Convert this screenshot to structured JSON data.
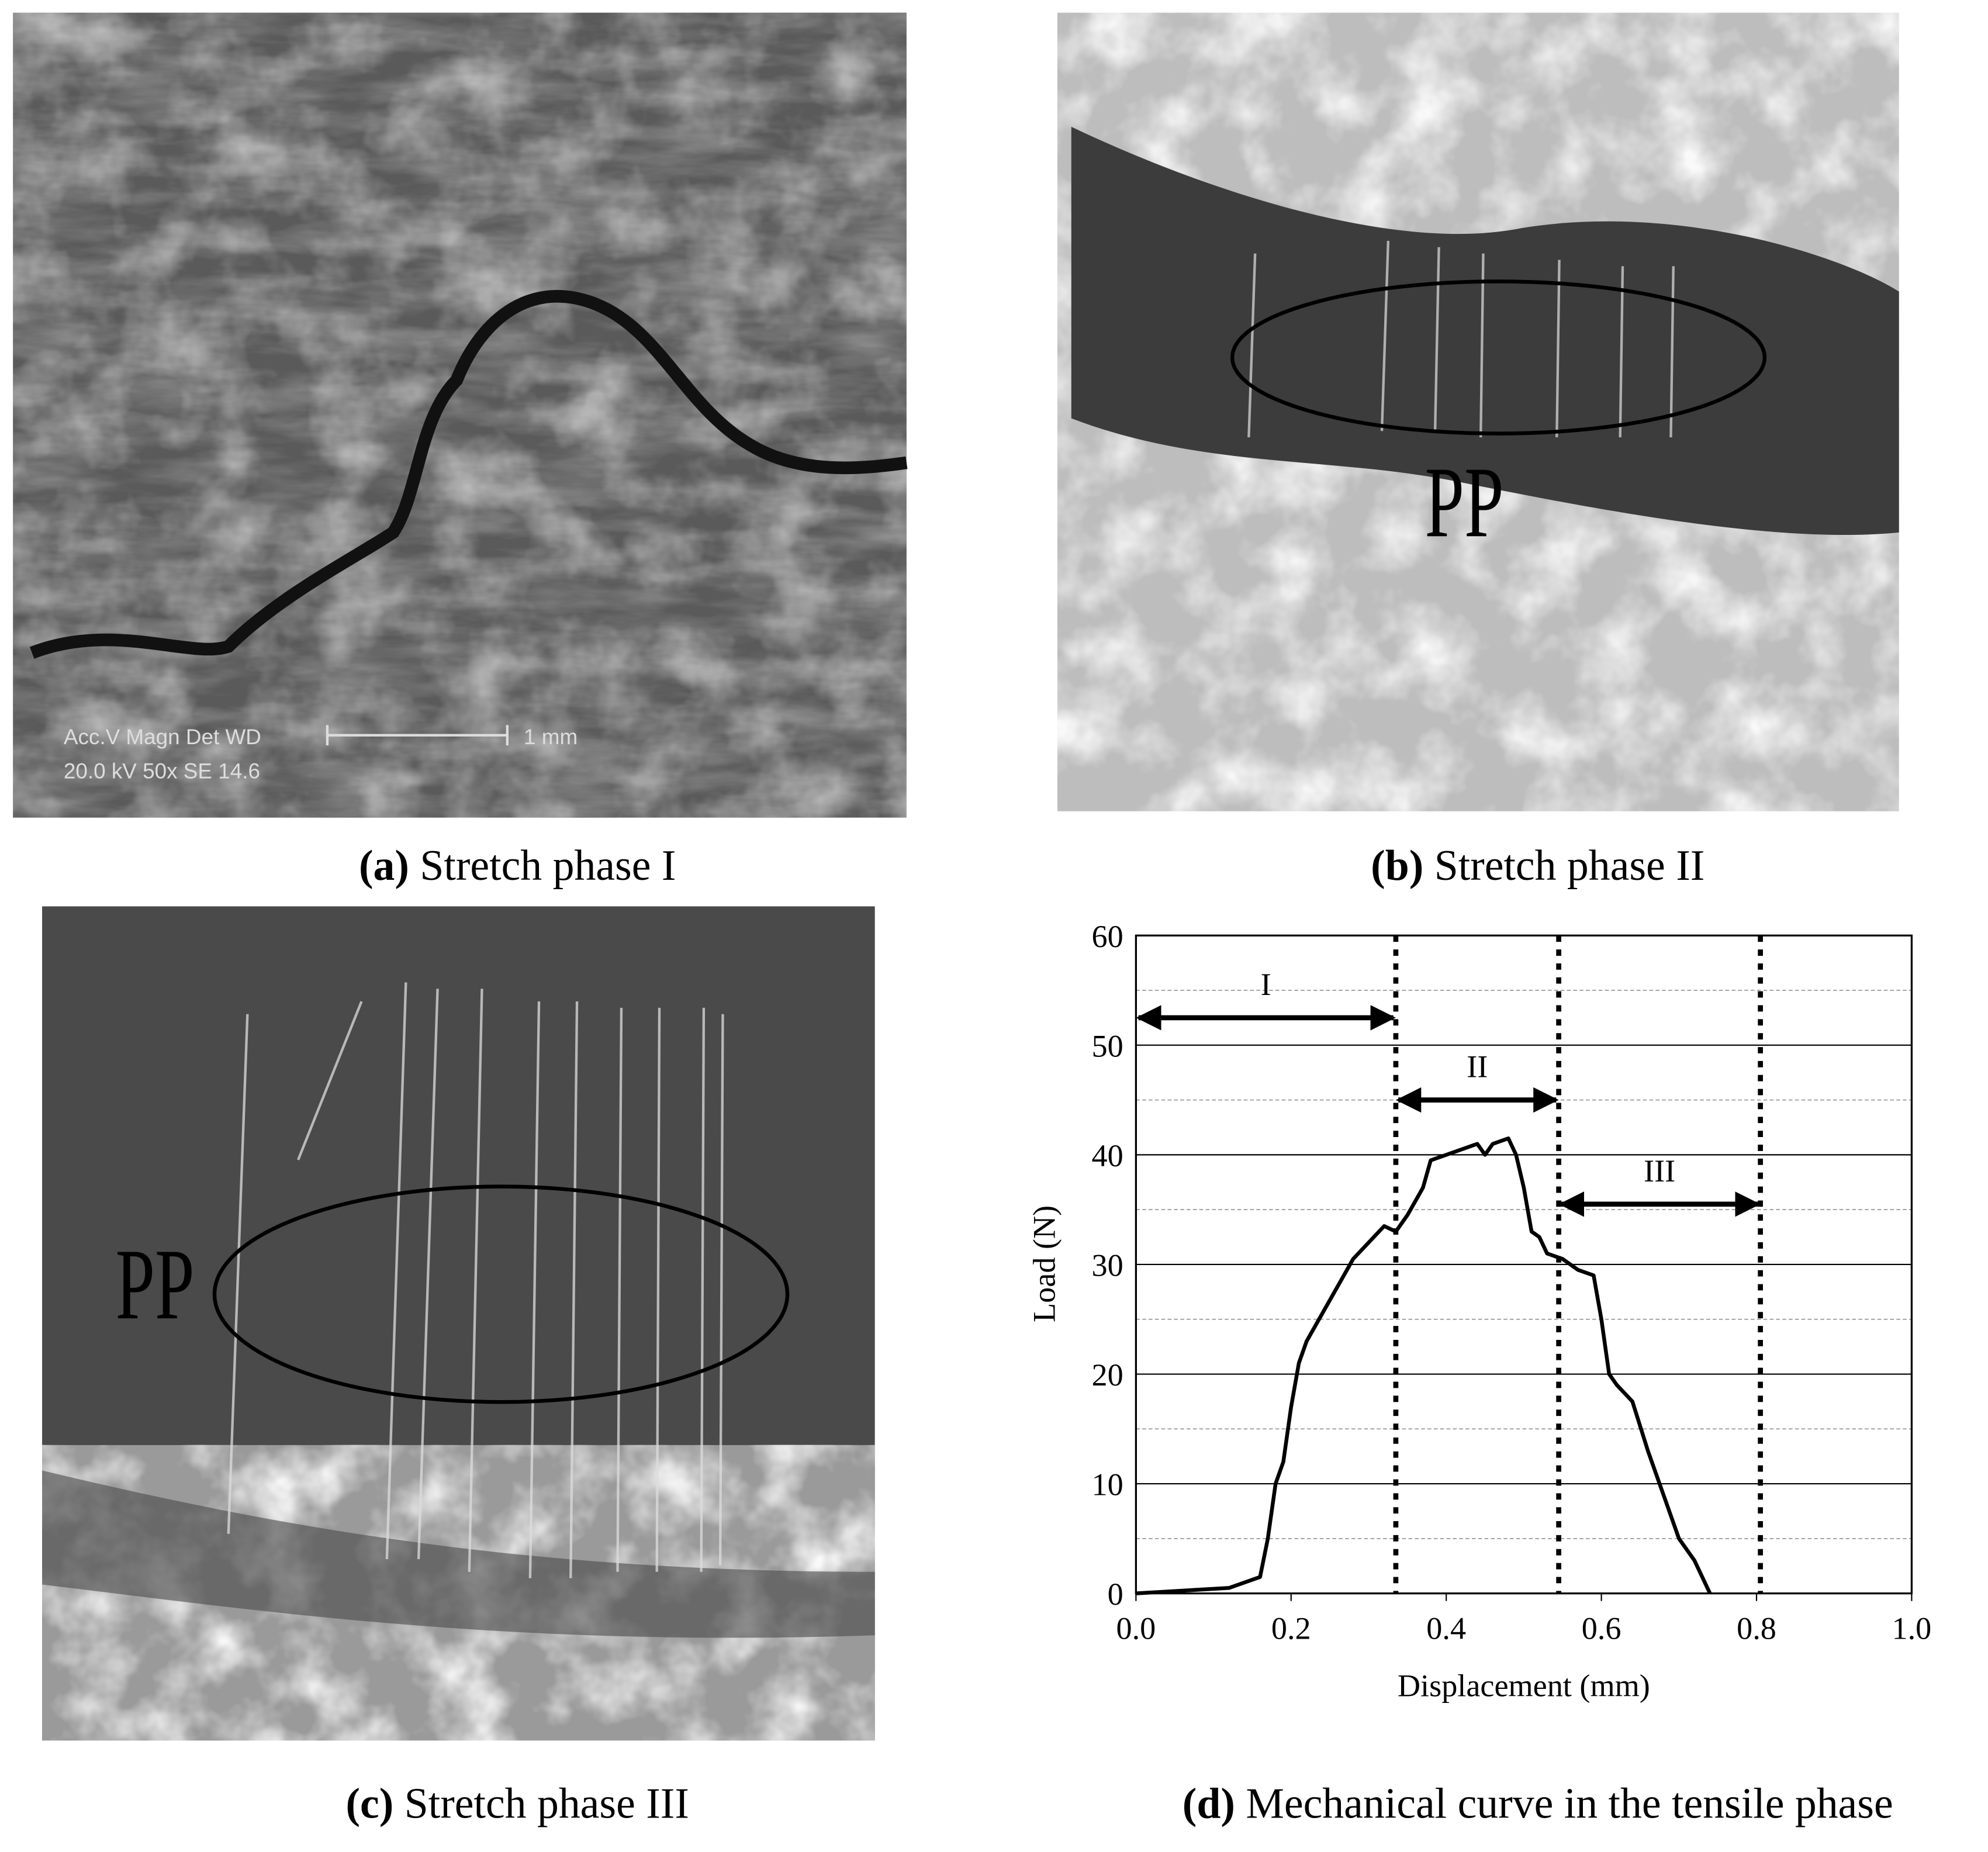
{
  "panels": [
    {
      "label": "(a)",
      "caption": "Stretch phase I",
      "scale_params": "Acc.V  Magn   Det  WD",
      "scale_values": "20.0 kV 50x     SE   14.6",
      "scale_bar": "1 mm"
    },
    {
      "label": "(b)",
      "caption": "Stretch phase II",
      "marker": "PP"
    },
    {
      "label": "(c)",
      "caption": "Stretch phase III",
      "marker": "PP"
    },
    {
      "label": "(d)",
      "caption": "Mechanical curve in the tensile phase"
    }
  ],
  "chart_data": {
    "type": "line",
    "x_label": "Displacement (mm)",
    "y_label": "Load (N)",
    "x": [
      0,
      0.12,
      0.16,
      0.17,
      0.18,
      0.19,
      0.2,
      0.21,
      0.22,
      0.24,
      0.26,
      0.28,
      0.3,
      0.32,
      0.335,
      0.35,
      0.37,
      0.38,
      0.4,
      0.42,
      0.44,
      0.45,
      0.46,
      0.48,
      0.49,
      0.5,
      0.51,
      0.52,
      0.53,
      0.55,
      0.57,
      0.59,
      0.6,
      0.61,
      0.62,
      0.64,
      0.66,
      0.68,
      0.7,
      0.72,
      0.74
    ],
    "series": [
      {
        "color": "#000000",
        "values": [
          0,
          0.5,
          1.5,
          5,
          10,
          12,
          17,
          21,
          23,
          25.5,
          28,
          30.5,
          32,
          33.5,
          33,
          34.5,
          37,
          39.5,
          40,
          40.5,
          41,
          40,
          41,
          41.5,
          40,
          37,
          33,
          32.5,
          31,
          30.5,
          29.5,
          29,
          25,
          20,
          19,
          17.5,
          13,
          9,
          5,
          3,
          0
        ]
      }
    ],
    "xlim": [
      0,
      1
    ],
    "ylim": [
      0,
      60
    ],
    "xticks": [
      {
        "value": 0,
        "label": "0.0"
      },
      {
        "value": 0.2,
        "label": "0.2"
      },
      {
        "value": 0.4,
        "label": "0.4"
      },
      {
        "value": 0.6,
        "label": "0.6"
      },
      {
        "value": 0.8,
        "label": "0.8"
      },
      {
        "value": 1,
        "label": "1.0"
      }
    ],
    "yticks": [
      0,
      10,
      20,
      30,
      40,
      50,
      60
    ],
    "y_minor_grid": [
      5,
      15,
      25,
      35,
      45,
      55
    ],
    "grid": true,
    "phase_bounds": [
      0.335,
      0.545,
      0.805
    ],
    "annotations": [
      {
        "text": "I",
        "x": [
          0,
          0.335
        ],
        "y": 52.5
      },
      {
        "text": "II",
        "x": [
          0.335,
          0.545
        ],
        "y": 45
      },
      {
        "text": "III",
        "x": [
          0.545,
          0.805
        ],
        "y": 35.5
      }
    ]
  }
}
